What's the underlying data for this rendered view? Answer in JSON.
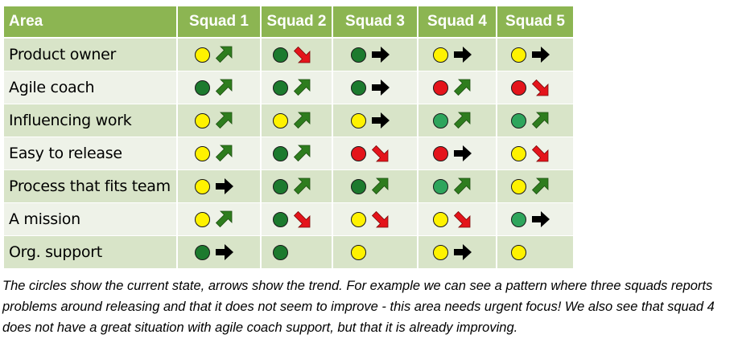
{
  "table": {
    "header": {
      "area": "Area",
      "squads": [
        "Squad 1",
        "Squad 2",
        "Squad 3",
        "Squad 4",
        "Squad 5"
      ]
    },
    "colors": {
      "header_bg": "#8cb552",
      "row_dark": "#d8e4c8",
      "row_light": "#eef2e8",
      "yellow": "#fff200",
      "green": "#1c7a2e",
      "mid_green": "#2ea55c",
      "red": "#e4141b",
      "arrow_up": "#2e7d1e",
      "arrow_down": "#e4141b",
      "arrow_flat": "#000000"
    },
    "rows": [
      {
        "area": "Product owner",
        "cells": [
          {
            "state": "yellow",
            "trend": "up"
          },
          {
            "state": "green",
            "trend": "down"
          },
          {
            "state": "green",
            "trend": "flat"
          },
          {
            "state": "yellow",
            "trend": "flat"
          },
          {
            "state": "yellow",
            "trend": "flat"
          }
        ]
      },
      {
        "area": "Agile coach",
        "cells": [
          {
            "state": "green",
            "trend": "up"
          },
          {
            "state": "green",
            "trend": "up"
          },
          {
            "state": "green",
            "trend": "flat"
          },
          {
            "state": "red",
            "trend": "up"
          },
          {
            "state": "red",
            "trend": "down"
          }
        ]
      },
      {
        "area": "Influencing work",
        "cells": [
          {
            "state": "yellow",
            "trend": "up"
          },
          {
            "state": "yellow",
            "trend": "up"
          },
          {
            "state": "yellow",
            "trend": "flat"
          },
          {
            "state": "mid",
            "trend": "up"
          },
          {
            "state": "mid",
            "trend": "up"
          }
        ]
      },
      {
        "area": "Easy to release",
        "cells": [
          {
            "state": "yellow",
            "trend": "up"
          },
          {
            "state": "green",
            "trend": "up"
          },
          {
            "state": "red",
            "trend": "down"
          },
          {
            "state": "red",
            "trend": "flat"
          },
          {
            "state": "yellow",
            "trend": "down"
          }
        ]
      },
      {
        "area": "Process that fits team",
        "cells": [
          {
            "state": "yellow",
            "trend": "flat"
          },
          {
            "state": "green",
            "trend": "up"
          },
          {
            "state": "green",
            "trend": "up"
          },
          {
            "state": "mid",
            "trend": "up"
          },
          {
            "state": "yellow",
            "trend": "up"
          }
        ]
      },
      {
        "area": "A mission",
        "cells": [
          {
            "state": "yellow",
            "trend": "up"
          },
          {
            "state": "green",
            "trend": "down"
          },
          {
            "state": "yellow",
            "trend": "down"
          },
          {
            "state": "yellow",
            "trend": "down"
          },
          {
            "state": "mid",
            "trend": "flat"
          }
        ]
      },
      {
        "area": "Org. support",
        "cells": [
          {
            "state": "green",
            "trend": "flat"
          },
          {
            "state": "green",
            "trend": "none"
          },
          {
            "state": "yellow",
            "trend": "none"
          },
          {
            "state": "yellow",
            "trend": "flat"
          },
          {
            "state": "yellow",
            "trend": "none"
          }
        ]
      }
    ]
  },
  "caption": "The circles show the current state, arrows show the trend. For example we can see a pattern where three squads reports problems around releasing and that it does not seem to improve - this area needs urgent focus! We also see that squad 4 does not have a great situation with agile coach support, but that it is already improving."
}
